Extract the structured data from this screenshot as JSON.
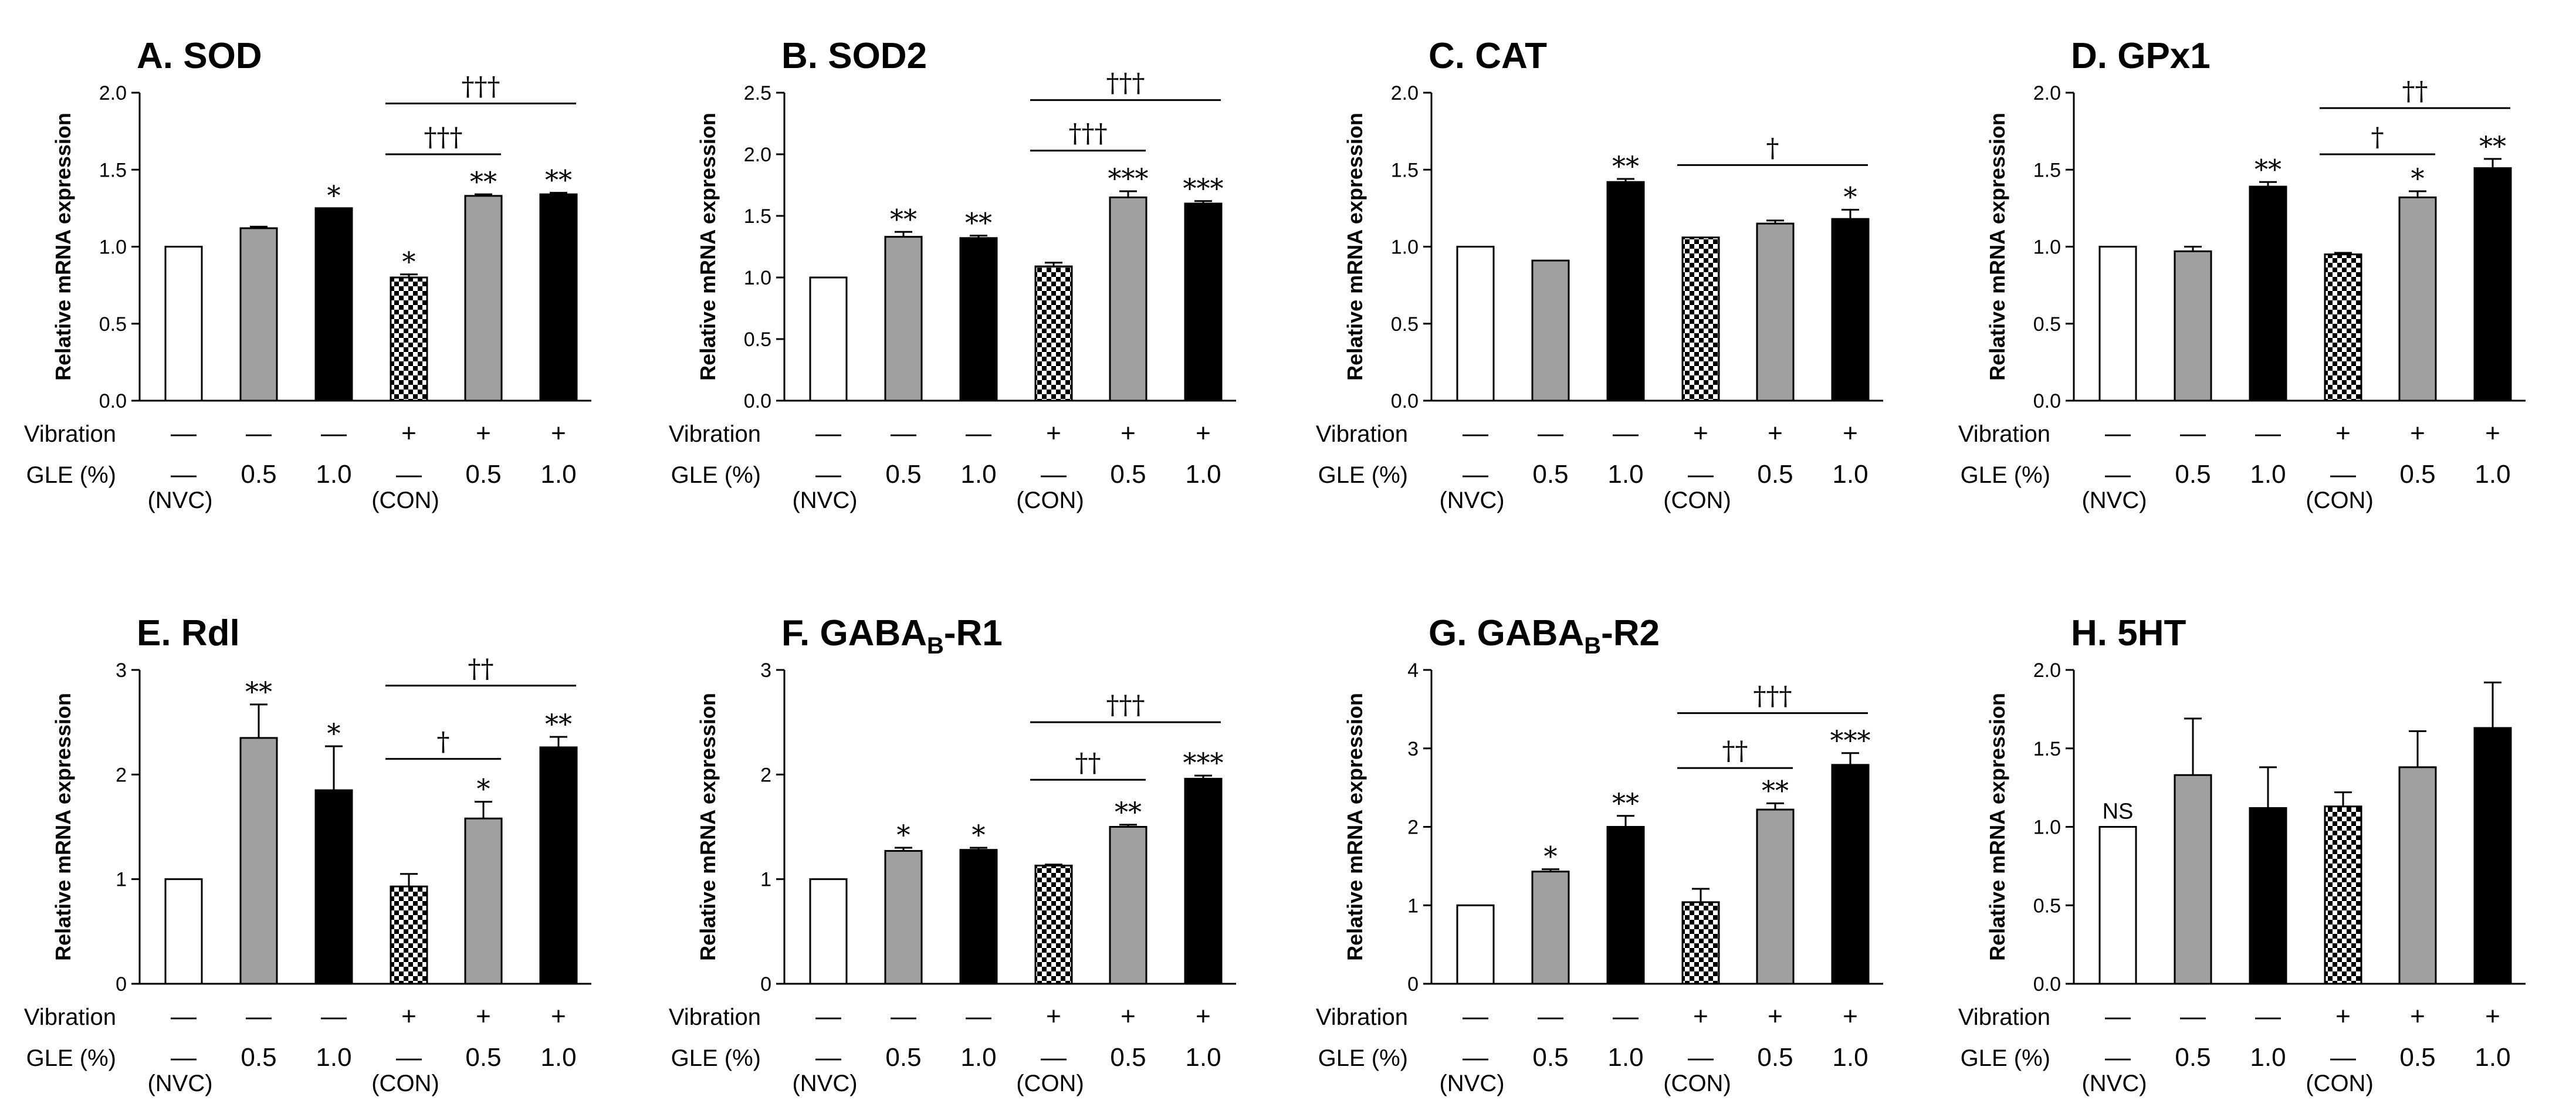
{
  "colors": {
    "white": "#ffffff",
    "gray": "#a0a0a2",
    "black": "#000000",
    "check_dark": "#000000",
    "check_light": "#ffffff"
  },
  "rows": {
    "vibration_label": "Vibration",
    "gle_label": "GLE (%)",
    "vibration": [
      "—",
      "—",
      "—",
      "+",
      "+",
      "+"
    ],
    "gle": [
      "—",
      "0.5",
      "1.0",
      "—",
      "0.5",
      "1.0"
    ],
    "notes": [
      "(NVC)",
      "",
      "",
      "(CON)",
      "",
      ""
    ]
  },
  "ylabel": "Relative mRNA expression",
  "chart_data": [
    {
      "type": "bar",
      "title": "A. SOD",
      "ylabel": "Relative mRNA expression",
      "ylim": [
        0,
        2.0
      ],
      "yticks": [
        "0.0",
        "0.5",
        "1.0",
        "1.5",
        "2.0"
      ],
      "categories": [
        "NVC",
        "0.5",
        "1.0",
        "CON",
        "0.5",
        "1.0"
      ],
      "values": [
        1.0,
        1.12,
        1.25,
        0.8,
        1.33,
        1.34
      ],
      "errors": [
        0,
        0.01,
        0,
        0.02,
        0.01,
        0.01
      ],
      "fills": [
        "white",
        "gray",
        "black",
        "check",
        "gray",
        "black"
      ],
      "stars": [
        "",
        "",
        "*",
        "*",
        "**",
        "**"
      ],
      "daggers": [
        {
          "from": 3,
          "to": 4,
          "y": 1.6,
          "label": "†††"
        },
        {
          "from": 3,
          "to": 5,
          "y": 1.93,
          "label": "†††"
        }
      ]
    },
    {
      "type": "bar",
      "title": "B. SOD2",
      "ylabel": "Relative mRNA expression",
      "ylim": [
        0,
        2.5
      ],
      "yticks": [
        "0.0",
        "0.5",
        "1.0",
        "1.5",
        "2.0",
        "2.5"
      ],
      "categories": [
        "NVC",
        "0.5",
        "1.0",
        "CON",
        "0.5",
        "1.0"
      ],
      "values": [
        1.0,
        1.33,
        1.32,
        1.09,
        1.65,
        1.6
      ],
      "errors": [
        0,
        0.04,
        0.02,
        0.03,
        0.05,
        0.02
      ],
      "fills": [
        "white",
        "gray",
        "black",
        "check",
        "gray",
        "black"
      ],
      "stars": [
        "",
        "**",
        "**",
        "",
        "***",
        "***"
      ],
      "daggers": [
        {
          "from": 3,
          "to": 4,
          "y": 2.03,
          "label": "†††"
        },
        {
          "from": 3,
          "to": 5,
          "y": 2.44,
          "label": "†††"
        }
      ]
    },
    {
      "type": "bar",
      "title": "C. CAT",
      "ylabel": "Relative mRNA expression",
      "ylim": [
        0,
        2.0
      ],
      "yticks": [
        "0.0",
        "0.5",
        "1.0",
        "1.5",
        "2.0"
      ],
      "categories": [
        "NVC",
        "0.5",
        "1.0",
        "CON",
        "0.5",
        "1.0"
      ],
      "values": [
        1.0,
        0.91,
        1.42,
        1.06,
        1.15,
        1.18
      ],
      "errors": [
        0,
        0,
        0.02,
        0,
        0.02,
        0.06
      ],
      "fills": [
        "white",
        "gray",
        "black",
        "check",
        "gray",
        "black"
      ],
      "stars": [
        "",
        "",
        "**",
        "",
        "",
        "*"
      ],
      "daggers": [
        {
          "from": 3,
          "to": 5,
          "y": 1.53,
          "label": "†"
        }
      ]
    },
    {
      "type": "bar",
      "title": "D. GPx1",
      "ylabel": "Relative mRNA expression",
      "ylim": [
        0,
        2.0
      ],
      "yticks": [
        "0.0",
        "0.5",
        "1.0",
        "1.5",
        "2.0"
      ],
      "categories": [
        "NVC",
        "0.5",
        "1.0",
        "CON",
        "0.5",
        "1.0"
      ],
      "values": [
        1.0,
        0.97,
        1.39,
        0.95,
        1.32,
        1.51
      ],
      "errors": [
        0,
        0.03,
        0.03,
        0.01,
        0.04,
        0.06
      ],
      "fills": [
        "white",
        "gray",
        "black",
        "check",
        "gray",
        "black"
      ],
      "stars": [
        "",
        "",
        "**",
        "",
        "*",
        "**"
      ],
      "daggers": [
        {
          "from": 3,
          "to": 4,
          "y": 1.6,
          "label": "†"
        },
        {
          "from": 3,
          "to": 5,
          "y": 1.9,
          "label": "††"
        }
      ]
    },
    {
      "type": "bar",
      "title": "E. Rdl",
      "ylabel": "Relative mRNA expression",
      "ylim": [
        0,
        3
      ],
      "yticks": [
        "0",
        "1",
        "2",
        "3"
      ],
      "categories": [
        "NVC",
        "0.5",
        "1.0",
        "CON",
        "0.5",
        "1.0"
      ],
      "values": [
        1.0,
        2.35,
        1.85,
        0.93,
        1.58,
        2.26
      ],
      "errors": [
        0,
        0.32,
        0.42,
        0.12,
        0.16,
        0.1
      ],
      "fills": [
        "white",
        "gray",
        "black",
        "check",
        "gray",
        "black"
      ],
      "stars": [
        "",
        "**",
        "*",
        "",
        "*",
        "**"
      ],
      "daggers": [
        {
          "from": 3,
          "to": 4,
          "y": 2.15,
          "label": "†"
        },
        {
          "from": 3,
          "to": 5,
          "y": 2.85,
          "label": "††"
        }
      ]
    },
    {
      "type": "bar",
      "title": "F. GABAB-R1",
      "title_main": "F. GABA",
      "title_sub": "B",
      "title_tail": "-R1",
      "ylabel": "Relative mRNA expression",
      "ylim": [
        0,
        3
      ],
      "yticks": [
        "0",
        "1",
        "2",
        "3"
      ],
      "categories": [
        "NVC",
        "0.5",
        "1.0",
        "CON",
        "0.5",
        "1.0"
      ],
      "values": [
        1.0,
        1.27,
        1.28,
        1.13,
        1.5,
        1.96
      ],
      "errors": [
        0,
        0.03,
        0.02,
        0.01,
        0.02,
        0.03
      ],
      "fills": [
        "white",
        "gray",
        "black",
        "check",
        "gray",
        "black"
      ],
      "stars": [
        "",
        "*",
        "*",
        "",
        "**",
        "***"
      ],
      "daggers": [
        {
          "from": 3,
          "to": 4,
          "y": 1.95,
          "label": "††"
        },
        {
          "from": 3,
          "to": 5,
          "y": 2.5,
          "label": "†††"
        }
      ]
    },
    {
      "type": "bar",
      "title": "G. GABAB-R2",
      "title_main": "G. GABA",
      "title_sub": "B",
      "title_tail": "-R2",
      "ylabel": "Relative mRNA expression",
      "ylim": [
        0,
        4
      ],
      "yticks": [
        "0",
        "1",
        "2",
        "3",
        "4"
      ],
      "categories": [
        "NVC",
        "0.5",
        "1.0",
        "CON",
        "0.5",
        "1.0"
      ],
      "values": [
        1.0,
        1.43,
        2.0,
        1.04,
        2.22,
        2.79
      ],
      "errors": [
        0,
        0.03,
        0.14,
        0.17,
        0.08,
        0.15
      ],
      "fills": [
        "white",
        "gray",
        "black",
        "check",
        "gray",
        "black"
      ],
      "stars": [
        "",
        "*",
        "**",
        "",
        "**",
        "***"
      ],
      "daggers": [
        {
          "from": 3,
          "to": 4,
          "y": 2.75,
          "label": "††"
        },
        {
          "from": 3,
          "to": 5,
          "y": 3.45,
          "label": "†††"
        }
      ]
    },
    {
      "type": "bar",
      "title": "H. 5HT",
      "ylabel": "Relative mRNA expression",
      "ylim": [
        0,
        2.0
      ],
      "yticks": [
        "0.0",
        "0.5",
        "1.0",
        "1.5",
        "2.0"
      ],
      "categories": [
        "NVC",
        "0.5",
        "1.0",
        "CON",
        "0.5",
        "1.0"
      ],
      "values": [
        1.0,
        1.33,
        1.12,
        1.13,
        1.38,
        1.63
      ],
      "errors": [
        0,
        0.36,
        0.26,
        0.09,
        0.23,
        0.29
      ],
      "fills": [
        "white",
        "gray",
        "black",
        "check",
        "gray",
        "black"
      ],
      "stars": [
        "NS",
        "",
        "",
        "",
        "",
        ""
      ],
      "daggers": []
    }
  ]
}
